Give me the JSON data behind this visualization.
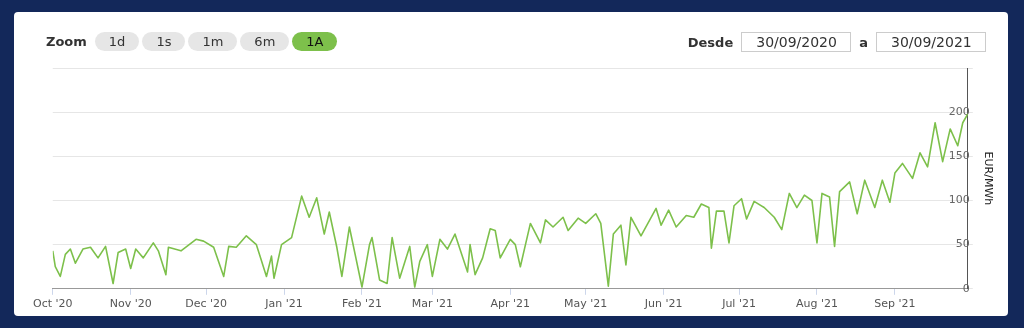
{
  "chart_data": {
    "type": "line",
    "ylabel": "EUR/MWh",
    "annotations": [
      "Zoom",
      "1d",
      "1s",
      "1m",
      "6m",
      "1A",
      "Desde",
      "30/09/2020",
      "a",
      "30/09/2021"
    ],
    "xlim": [
      "2020-10-01",
      "2021-09-30"
    ],
    "xticks": [
      {
        "value": "2020-10-01",
        "label": "Oct '20"
      },
      {
        "value": "2020-11-01",
        "label": "Nov '20"
      },
      {
        "value": "2020-12-01",
        "label": "Dec '20"
      },
      {
        "value": "2021-01-01",
        "label": "Jan '21"
      },
      {
        "value": "2021-02-01",
        "label": "Feb '21"
      },
      {
        "value": "2021-03-01",
        "label": "Mar '21"
      },
      {
        "value": "2021-04-01",
        "label": "Apr '21"
      },
      {
        "value": "2021-05-01",
        "label": "May '21"
      },
      {
        "value": "2021-06-01",
        "label": "Jun '21"
      },
      {
        "value": "2021-07-01",
        "label": "Jul '21"
      },
      {
        "value": "2021-08-01",
        "label": "Aug '21"
      },
      {
        "value": "2021-09-01",
        "label": "Sep '21"
      }
    ],
    "ylim": [
      0,
      250
    ],
    "yticks": [
      0,
      50,
      100,
      150,
      200,
      {
        "value": 250,
        "label": null
      }
    ],
    "grid": "y",
    "legend": false,
    "marker": "none",
    "line_style": "solid",
    "x": [
      "2020-10-01",
      "2020-10-02",
      "2020-10-04",
      "2020-10-06",
      "2020-10-08",
      "2020-10-10",
      "2020-10-13",
      "2020-10-16",
      "2020-10-19",
      "2020-10-22",
      "2020-10-25",
      "2020-10-27",
      "2020-10-30",
      "2020-11-01",
      "2020-11-03",
      "2020-11-06",
      "2020-11-10",
      "2020-11-12",
      "2020-11-15",
      "2020-11-16",
      "2020-11-21",
      "2020-11-27",
      "2020-11-30",
      "2020-12-04",
      "2020-12-08",
      "2020-12-10",
      "2020-12-13",
      "2020-12-17",
      "2020-12-21",
      "2020-12-25",
      "2020-12-27",
      "2020-12-28",
      "2020-12-31",
      "2021-01-04",
      "2021-01-08",
      "2021-01-11",
      "2021-01-14",
      "2021-01-17",
      "2021-01-19",
      "2021-01-22",
      "2021-01-24",
      "2021-01-27",
      "2021-02-01",
      "2021-02-04",
      "2021-02-05",
      "2021-02-08",
      "2021-02-11",
      "2021-02-13",
      "2021-02-16",
      "2021-02-20",
      "2021-02-22",
      "2021-02-24",
      "2021-02-27",
      "2021-03-01",
      "2021-03-04",
      "2021-03-07",
      "2021-03-10",
      "2021-03-15",
      "2021-03-16",
      "2021-03-18",
      "2021-03-21",
      "2021-03-24",
      "2021-03-26",
      "2021-03-28",
      "2021-04-01",
      "2021-04-03",
      "2021-04-05",
      "2021-04-09",
      "2021-04-13",
      "2021-04-15",
      "2021-04-18",
      "2021-04-22",
      "2021-04-24",
      "2021-04-28",
      "2021-05-01",
      "2021-05-05",
      "2021-05-07",
      "2021-05-10",
      "2021-05-12",
      "2021-05-15",
      "2021-05-17",
      "2021-05-19",
      "2021-05-23",
      "2021-05-29",
      "2021-05-31",
      "2021-06-03",
      "2021-06-06",
      "2021-06-10",
      "2021-06-13",
      "2021-06-16",
      "2021-06-19",
      "2021-06-20",
      "2021-06-22",
      "2021-06-25",
      "2021-06-27",
      "2021-06-29",
      "2021-07-02",
      "2021-07-04",
      "2021-07-07",
      "2021-07-11",
      "2021-07-15",
      "2021-07-18",
      "2021-07-21",
      "2021-07-24",
      "2021-07-27",
      "2021-07-30",
      "2021-08-01",
      "2021-08-03",
      "2021-08-06",
      "2021-08-08",
      "2021-08-10",
      "2021-08-14",
      "2021-08-17",
      "2021-08-20",
      "2021-08-24",
      "2021-08-27",
      "2021-08-30",
      "2021-09-01",
      "2021-09-04",
      "2021-09-08",
      "2021-09-11",
      "2021-09-14",
      "2021-09-17",
      "2021-09-20",
      "2021-09-23",
      "2021-09-26",
      "2021-09-28",
      "2021-09-30"
    ],
    "series": [
      {
        "color": "#7dc04b",
        "values": [
          43,
          25,
          14,
          39,
          45,
          29,
          45,
          47,
          35,
          48,
          6,
          41,
          45,
          23,
          45,
          35,
          52,
          43,
          16,
          47,
          43,
          56,
          54,
          47,
          14,
          48,
          47,
          60,
          50,
          14,
          37,
          12,
          50,
          58,
          105,
          81,
          103,
          62,
          87,
          47,
          14,
          70,
          2,
          50,
          58,
          10,
          6,
          58,
          12,
          48,
          2,
          31,
          50,
          14,
          56,
          45,
          62,
          19,
          50,
          16,
          35,
          68,
          66,
          35,
          56,
          50,
          25,
          74,
          52,
          78,
          70,
          81,
          66,
          80,
          74,
          85,
          74,
          3,
          62,
          72,
          27,
          81,
          60,
          91,
          72,
          89,
          70,
          83,
          81,
          96,
          92,
          46,
          88,
          88,
          52,
          94,
          102,
          79,
          99,
          92,
          81,
          67,
          108,
          92,
          106,
          100,
          52,
          108,
          104,
          48,
          110,
          121,
          85,
          123,
          92,
          123,
          98,
          131,
          142,
          125,
          154,
          138,
          188,
          144,
          181,
          162,
          188,
          198
        ]
      }
    ]
  }
}
